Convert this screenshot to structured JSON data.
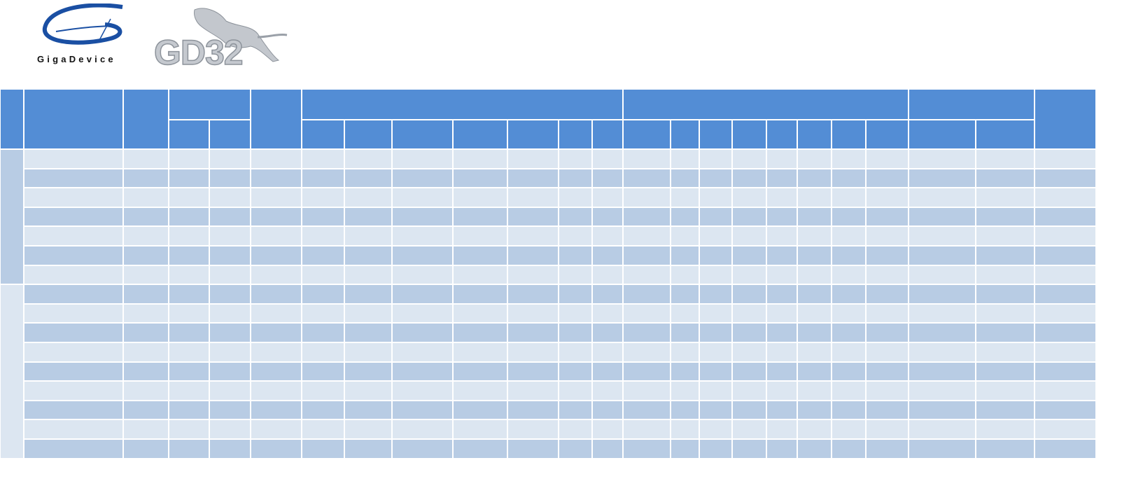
{
  "logos": {
    "gigadevice": {
      "text": "GigaDevice",
      "color": "#1a4fa3"
    },
    "gd32": {
      "text": "GD32",
      "color": "#b5bac2"
    }
  },
  "colors": {
    "header": "#538dd5",
    "row_light": "#dce6f1",
    "row_dark": "#b8cce4"
  },
  "table": {
    "header": [],
    "rows": []
  }
}
